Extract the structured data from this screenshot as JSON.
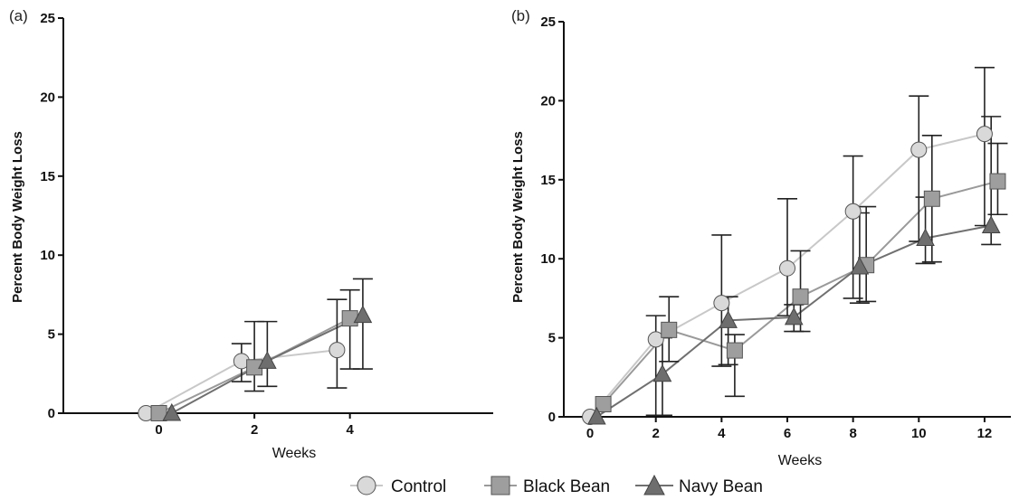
{
  "chart_data": [
    {
      "panel_label": "(a)",
      "type": "line",
      "xlabel": "Weeks",
      "ylabel": "Percent Body Weight Loss",
      "xlim": [
        -1,
        3.5
      ],
      "ylim": [
        0,
        25
      ],
      "x_tick_labels": [
        "0",
        "2",
        "4"
      ],
      "y_tick_labels": [
        "0",
        "5",
        "10",
        "15",
        "20",
        "25"
      ],
      "y_ticks": [
        0,
        5,
        10,
        15,
        20,
        25
      ],
      "categories": [
        "0",
        "2",
        "4"
      ],
      "series": [
        {
          "name": "Control",
          "marker": "circle",
          "fill": "#d9d9d9",
          "line_color": "#c8c8c8",
          "values": [
            0,
            3.3,
            4.0
          ],
          "error_up": [
            0,
            1.1,
            3.2
          ],
          "error_down": [
            0,
            1.3,
            2.4
          ]
        },
        {
          "name": "Black Bean",
          "marker": "square",
          "fill": "#9e9e9e",
          "line_color": "#9a9a9a",
          "values": [
            0,
            2.9,
            6.0
          ],
          "error_up": [
            0,
            2.9,
            1.8
          ],
          "error_down": [
            0,
            1.5,
            3.2
          ]
        },
        {
          "name": "Navy Bean",
          "marker": "triangle",
          "fill": "#6e6e6e",
          "line_color": "#707070",
          "values": [
            0,
            3.3,
            6.2
          ],
          "error_up": [
            0,
            2.5,
            2.3
          ],
          "error_down": [
            0,
            1.6,
            3.4
          ]
        }
      ]
    },
    {
      "panel_label": "(b)",
      "type": "line",
      "xlabel": "Weeks",
      "ylabel": "Percent Body Weight Loss",
      "xlim": [
        -0.8,
        12.8
      ],
      "ylim": [
        0,
        25
      ],
      "x_tick_labels": [
        "0",
        "2",
        "4",
        "6",
        "8",
        "10",
        "12"
      ],
      "y_tick_labels": [
        "0",
        "5",
        "10",
        "15",
        "20",
        "25"
      ],
      "y_ticks": [
        0,
        5,
        10,
        15,
        20,
        25
      ],
      "x": [
        0,
        2,
        4,
        6,
        8,
        10,
        12
      ],
      "series": [
        {
          "name": "Control",
          "marker": "circle",
          "fill": "#d9d9d9",
          "line_color": "#c8c8c8",
          "values": [
            0,
            4.9,
            7.2,
            9.4,
            13.0,
            16.9,
            17.9
          ],
          "error_up": [
            0,
            1.5,
            4.3,
            4.4,
            3.5,
            3.4,
            4.2
          ],
          "error_down": [
            0,
            4.8,
            4.0,
            3.0,
            5.5,
            5.8,
            5.8
          ]
        },
        {
          "name": "Black Bean",
          "marker": "square",
          "fill": "#9e9e9e",
          "line_color": "#9a9a9a",
          "values": [
            0.8,
            5.5,
            4.2,
            7.6,
            9.6,
            13.8,
            14.9
          ],
          "error_up": [
            0,
            2.1,
            1.0,
            2.9,
            3.7,
            4.0,
            2.4
          ],
          "error_down": [
            0,
            2.0,
            2.9,
            2.2,
            2.3,
            4.0,
            2.1
          ]
        },
        {
          "name": "Navy Bean",
          "marker": "triangle",
          "fill": "#6e6e6e",
          "line_color": "#707070",
          "values": [
            0,
            2.7,
            6.1,
            6.3,
            9.5,
            11.3,
            12.1
          ],
          "error_up": [
            0,
            2.3,
            1.5,
            0.8,
            3.4,
            2.6,
            6.9
          ],
          "error_down": [
            0,
            2.6,
            2.8,
            0.9,
            2.3,
            1.6,
            1.2
          ]
        }
      ]
    }
  ],
  "legend": {
    "placement": "bottom-center",
    "items": [
      {
        "label": "Control",
        "marker": "circle",
        "fill": "#d9d9d9",
        "line_color": "#c8c8c8"
      },
      {
        "label": "Black Bean",
        "marker": "square",
        "fill": "#9e9e9e",
        "line_color": "#9a9a9a"
      },
      {
        "label": "Navy Bean",
        "marker": "triangle",
        "fill": "#6e6e6e",
        "line_color": "#707070"
      }
    ]
  }
}
